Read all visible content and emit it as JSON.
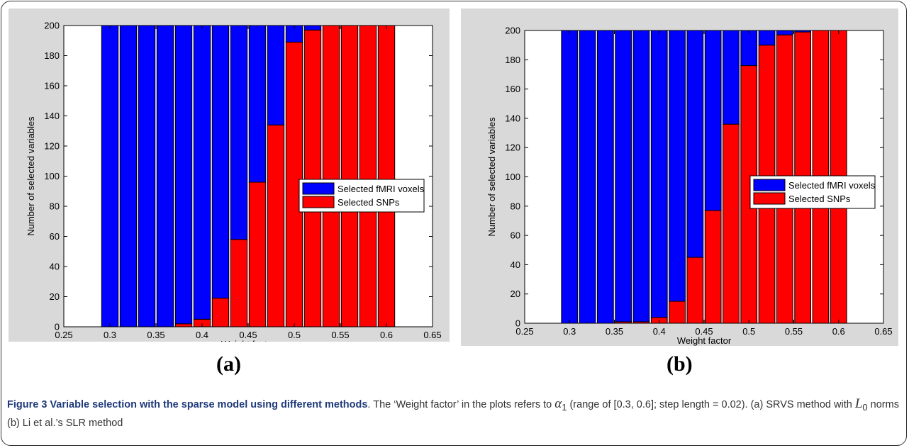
{
  "chart_data": [
    {
      "type": "bar",
      "stacked": true,
      "panel_label": "(a)",
      "title": "",
      "xlabel": "Weight factor",
      "ylabel": "Number of selected variables",
      "xlim": [
        0.25,
        0.65
      ],
      "ylim": [
        0,
        200
      ],
      "xticks": [
        "0.25",
        "0.3",
        "0.35",
        "0.4",
        "0.45",
        "0.5",
        "0.55",
        "0.6",
        "0.65"
      ],
      "yticks": [
        "0",
        "20",
        "40",
        "60",
        "80",
        "100",
        "120",
        "140",
        "160",
        "180",
        "200"
      ],
      "x": [
        0.3,
        0.32,
        0.34,
        0.36,
        0.38,
        0.4,
        0.42,
        0.44,
        0.46,
        0.48,
        0.5,
        0.52,
        0.54,
        0.56,
        0.58,
        0.6
      ],
      "series": [
        {
          "name": "Selected SNPs",
          "color": "#ff0000",
          "values": [
            0,
            0,
            0,
            0,
            2,
            5,
            19,
            58,
            96,
            134,
            189,
            197,
            200,
            200,
            200,
            200
          ]
        },
        {
          "name": "Selected fMRI voxels",
          "color": "#0000ff",
          "values": [
            200,
            200,
            200,
            200,
            198,
            195,
            181,
            142,
            104,
            66,
            11,
            3,
            0,
            0,
            0,
            0
          ]
        }
      ],
      "legend": [
        "Selected fMRI voxels",
        "Selected SNPs"
      ],
      "legend_position": "bottom-right",
      "grid": false
    },
    {
      "type": "bar",
      "stacked": true,
      "panel_label": "(b)",
      "title": "",
      "xlabel": "Weight factor",
      "ylabel": "Number of selected variables",
      "xlim": [
        0.25,
        0.65
      ],
      "ylim": [
        0,
        200
      ],
      "xticks": [
        "0.25",
        "0.3",
        "0.35",
        "0.4",
        "0.45",
        "0.5",
        "0.55",
        "0.6",
        "0.65"
      ],
      "yticks": [
        "0",
        "20",
        "40",
        "60",
        "80",
        "100",
        "120",
        "140",
        "160",
        "180",
        "200"
      ],
      "x": [
        0.3,
        0.32,
        0.34,
        0.36,
        0.38,
        0.4,
        0.42,
        0.44,
        0.46,
        0.48,
        0.5,
        0.52,
        0.54,
        0.56,
        0.58,
        0.6
      ],
      "series": [
        {
          "name": "Selected SNPs",
          "color": "#ff0000",
          "values": [
            0,
            0,
            0,
            1,
            1,
            4,
            15,
            45,
            77,
            136,
            176,
            190,
            197,
            199,
            200,
            200
          ]
        },
        {
          "name": "Selected fMRI voxels",
          "color": "#0000ff",
          "values": [
            200,
            200,
            200,
            199,
            199,
            196,
            185,
            155,
            123,
            64,
            24,
            10,
            3,
            1,
            0,
            0
          ]
        }
      ],
      "legend": [
        "Selected fMRI voxels",
        "Selected SNPs"
      ],
      "legend_position": "bottom-right",
      "grid": false
    }
  ],
  "caption": {
    "title": "Figure 3 Variable selection with the sparse model using different methods",
    "text_1": ". The ‘Weight factor’ in the plots refers to ",
    "alpha_symbol": "α",
    "alpha_sub": "1",
    "text_2": " (range of [0.3, 0.6]; step length = 0.02). (a) SRVS method with ",
    "norm_symbol": "L",
    "norm_sub": "0",
    "text_3": " norms (b) Li et al.’s SLR method"
  }
}
